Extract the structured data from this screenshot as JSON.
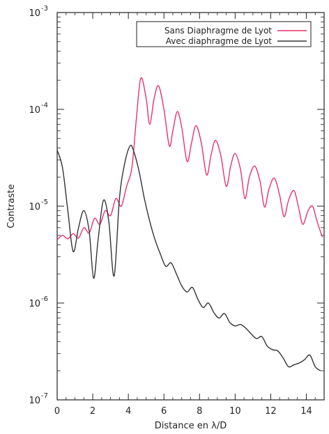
{
  "chart_data": {
    "type": "line",
    "title": "",
    "xlabel": "Distance en λ/D",
    "ylabel": "Contraste",
    "x_scale": "linear",
    "y_scale": "log",
    "xlim": [
      0,
      15
    ],
    "ylim": [
      1e-07,
      0.001
    ],
    "x_ticks": [
      "0",
      "2",
      "4",
      "6",
      "8",
      "10",
      "12",
      "14"
    ],
    "x_tick_values": [
      0,
      2,
      4,
      6,
      8,
      10,
      12,
      14
    ],
    "y_ticks": [
      {
        "mantissa": "10",
        "exp": "-7",
        "value": 1e-07
      },
      {
        "mantissa": "10",
        "exp": "-6",
        "value": 1e-06
      },
      {
        "mantissa": "10",
        "exp": "-5",
        "value": 1e-05
      },
      {
        "mantissa": "10",
        "exp": "-4",
        "value": 0.0001
      },
      {
        "mantissa": "10",
        "exp": "-3",
        "value": 0.001
      }
    ],
    "grid": false,
    "legend_position": "top-right",
    "series": [
      {
        "name": "Sans Diaphragme de Lyot",
        "color": "#e8336b",
        "x": [
          0,
          0.3,
          0.6,
          0.9,
          1.2,
          1.5,
          1.8,
          2.1,
          2.4,
          2.7,
          3.0,
          3.3,
          3.6,
          3.9,
          4.2,
          4.45,
          4.7,
          5.0,
          5.2,
          5.45,
          5.7,
          6.0,
          6.3,
          6.5,
          6.75,
          7.0,
          7.3,
          7.55,
          7.8,
          8.1,
          8.4,
          8.65,
          8.9,
          9.2,
          9.5,
          9.75,
          10.0,
          10.3,
          10.55,
          10.8,
          11.1,
          11.4,
          11.65,
          11.9,
          12.2,
          12.5,
          12.75,
          13.0,
          13.3,
          13.55,
          13.8,
          14.1,
          14.35,
          14.6,
          14.9
        ],
        "y": [
          4.5e-06,
          5e-06,
          4.6e-06,
          5.2e-06,
          4.7e-06,
          6e-06,
          5.3e-06,
          7.5e-06,
          6.5e-06,
          9e-06,
          8e-06,
          1.2e-05,
          1e-05,
          1.6e-05,
          2.5e-05,
          8e-05,
          0.00021,
          0.00013,
          7e-05,
          0.00013,
          0.000175,
          0.0001,
          4.2e-05,
          6e-05,
          9.5e-05,
          6.5e-05,
          2.9e-05,
          4.5e-05,
          6.8e-05,
          4.5e-05,
          2.1e-05,
          3.4e-05,
          4.8e-05,
          3.3e-05,
          1.6e-05,
          2.6e-05,
          3.5e-05,
          2.4e-05,
          1.2e-05,
          2e-05,
          2.6e-05,
          1.8e-05,
          9.8e-06,
          1.5e-05,
          1.95e-05,
          1.3e-05,
          7.8e-06,
          1.15e-05,
          1.45e-05,
          1e-05,
          6.5e-06,
          9e-06,
          1e-05,
          7e-06,
          4.8e-06
        ]
      },
      {
        "name": "Avec diaphragme de Lyot",
        "color": "#333333",
        "x": [
          0,
          0.3,
          0.6,
          0.9,
          1.2,
          1.5,
          1.8,
          2.05,
          2.3,
          2.6,
          2.9,
          3.2,
          3.5,
          3.8,
          4.1,
          4.3,
          4.6,
          4.9,
          5.2,
          5.5,
          5.8,
          6.1,
          6.4,
          6.7,
          7.0,
          7.3,
          7.6,
          7.9,
          8.2,
          8.5,
          8.8,
          9.1,
          9.4,
          9.7,
          10.0,
          10.3,
          10.6,
          10.9,
          11.2,
          11.5,
          11.8,
          12.1,
          12.4,
          12.7,
          13.0,
          13.3,
          13.6,
          13.9,
          14.2,
          14.5,
          14.8
        ],
        "y": [
          3.8e-05,
          2.5e-05,
          9e-06,
          3.4e-06,
          6e-06,
          9e-06,
          5.5e-06,
          1.8e-06,
          4.5e-06,
          1.15e-05,
          7e-06,
          1.9e-06,
          1.2e-05,
          2.8e-05,
          4.2e-05,
          3.7e-05,
          2.3e-05,
          1.2e-05,
          7e-06,
          4.5e-06,
          3.2e-06,
          2.4e-06,
          2.6e-06,
          2e-06,
          1.5e-06,
          1.3e-06,
          1.45e-06,
          1.1e-06,
          9e-07,
          1e-06,
          8e-07,
          7e-07,
          7.8e-07,
          6.3e-07,
          5.8e-07,
          6e-07,
          5.5e-07,
          4.8e-07,
          4.3e-07,
          4.5e-07,
          3.6e-07,
          3.3e-07,
          3.2e-07,
          2.7e-07,
          2.2e-07,
          2.3e-07,
          2.4e-07,
          2.6e-07,
          2.9e-07,
          2.2e-07,
          2e-07
        ]
      }
    ]
  }
}
